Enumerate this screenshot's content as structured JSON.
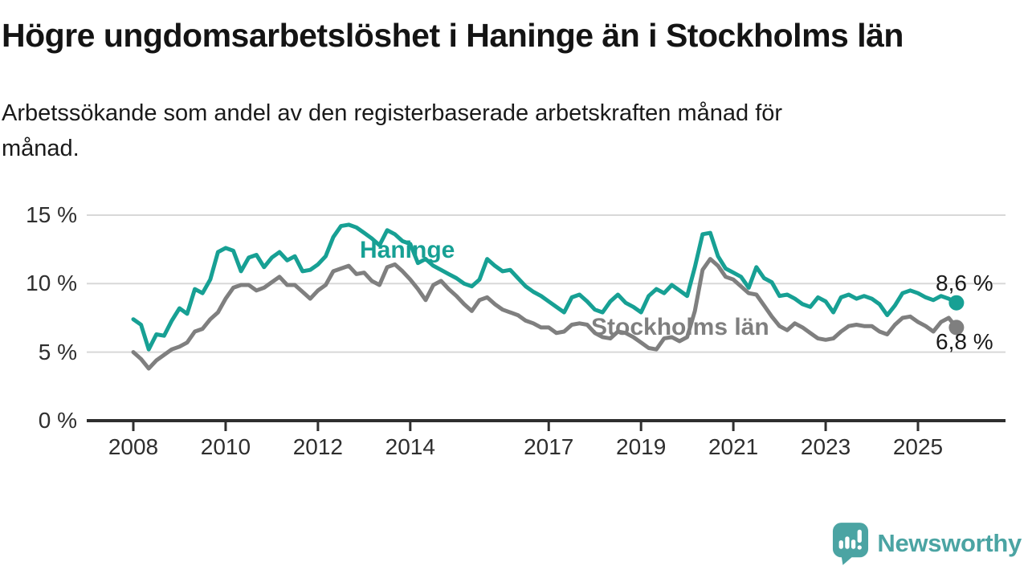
{
  "header": {
    "title": "Högre ungdomsarbetslöshet i Haninge än i Stockholms län",
    "subtitle_line1": "Arbetssökande som andel av den registerbaserade arbetskraften månad för",
    "subtitle_line2": "månad."
  },
  "chart_data": {
    "type": "line",
    "title": "Högre ungdomsarbetslöshet i Haninge än i Stockholms län",
    "subtitle": "Arbetssökande som andel av den registerbaserade arbetskraften månad för månad.",
    "xlabel": "",
    "ylabel": "",
    "unit": "%",
    "grid": "horizontal",
    "legend_position": "inline-labels",
    "xlim": [
      2007.0,
      2026.9
    ],
    "ylim": [
      0,
      15.5
    ],
    "x_start": 2008.0,
    "x_step_years": 0.166667,
    "x_ticks": [
      2008,
      2010,
      2012,
      2014,
      2017,
      2019,
      2021,
      2023,
      2025
    ],
    "y_ticks": [
      {
        "value": 0,
        "label": "0 %"
      },
      {
        "value": 5,
        "label": "5 %"
      },
      {
        "value": 10,
        "label": "10 %"
      },
      {
        "value": 15,
        "label": "15 %"
      }
    ],
    "series": [
      {
        "name": "Haninge",
        "color": "#17a094",
        "end_label": "8,6 %",
        "end_value": 8.6,
        "values": [
          7.4,
          7.0,
          5.2,
          6.3,
          6.2,
          7.3,
          8.2,
          7.8,
          9.6,
          9.3,
          10.3,
          12.3,
          12.6,
          12.4,
          10.9,
          11.9,
          12.1,
          11.2,
          11.9,
          12.3,
          11.7,
          12.0,
          10.9,
          11.0,
          11.4,
          12.0,
          13.4,
          14.2,
          14.3,
          14.1,
          13.7,
          13.3,
          12.8,
          13.9,
          13.6,
          13.1,
          12.9,
          11.5,
          11.8,
          11.3,
          11.0,
          10.7,
          10.4,
          10.0,
          9.8,
          10.3,
          11.8,
          11.3,
          10.9,
          11.0,
          10.4,
          9.8,
          9.4,
          9.1,
          8.7,
          8.3,
          7.9,
          9.0,
          9.2,
          8.7,
          8.1,
          7.9,
          8.7,
          9.2,
          8.6,
          8.3,
          7.9,
          9.1,
          9.6,
          9.3,
          9.9,
          9.5,
          9.1,
          11.2,
          13.6,
          13.7,
          12.0,
          11.1,
          10.8,
          10.5,
          9.7,
          11.2,
          10.4,
          10.1,
          9.1,
          9.2,
          8.9,
          8.5,
          8.3,
          9.0,
          8.7,
          7.9,
          9.0,
          9.2,
          8.9,
          9.1,
          8.9,
          8.5,
          7.7,
          8.4,
          9.3,
          9.5,
          9.3,
          9.0,
          8.8,
          9.1,
          8.9,
          8.6
        ]
      },
      {
        "name": "Stockholms län",
        "color": "#7f7f7f",
        "end_label": "6,8 %",
        "end_value": 6.8,
        "values": [
          5.0,
          4.5,
          3.8,
          4.4,
          4.8,
          5.2,
          5.4,
          5.7,
          6.5,
          6.7,
          7.4,
          7.9,
          8.9,
          9.7,
          9.9,
          9.9,
          9.5,
          9.7,
          10.1,
          10.5,
          9.9,
          9.9,
          9.4,
          8.9,
          9.5,
          9.9,
          10.9,
          11.1,
          11.3,
          10.7,
          10.8,
          10.2,
          9.9,
          11.2,
          11.4,
          10.9,
          10.3,
          9.6,
          8.8,
          9.9,
          10.2,
          9.6,
          9.1,
          8.5,
          8.0,
          8.8,
          9.0,
          8.5,
          8.1,
          7.9,
          7.7,
          7.3,
          7.1,
          6.8,
          6.8,
          6.4,
          6.5,
          7.0,
          7.1,
          7.0,
          6.4,
          6.1,
          6.0,
          6.5,
          6.4,
          6.1,
          5.7,
          5.3,
          5.2,
          6.0,
          6.1,
          5.8,
          6.1,
          8.0,
          11.0,
          11.8,
          11.3,
          10.5,
          10.3,
          9.8,
          9.3,
          9.2,
          8.4,
          7.6,
          6.9,
          6.6,
          7.1,
          6.8,
          6.4,
          6.0,
          5.9,
          6.0,
          6.5,
          6.9,
          7.0,
          6.9,
          6.9,
          6.5,
          6.3,
          7.0,
          7.5,
          7.6,
          7.2,
          6.9,
          6.5,
          7.2,
          7.5,
          6.8
        ]
      }
    ]
  },
  "footer": {
    "brand": "Newsworthy",
    "brand_color": "#4ba4a3",
    "logo_icon": "speech-bubble-bar-chart-icon"
  }
}
